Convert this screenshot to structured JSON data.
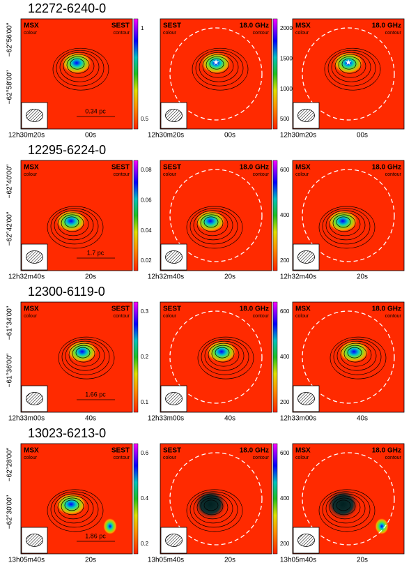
{
  "rows": [
    {
      "title": "12272-6240-0",
      "dec_labels": [
        "−62°56′00″",
        "−62°58′00″"
      ],
      "ra_labels": [
        "12h30m20s",
        "00s"
      ],
      "scale_bar": "0.34 pc",
      "panels": [
        {
          "left": "MSX",
          "left_sub": "colour",
          "right": "SEST",
          "right_sub": "contour",
          "colorbar_ticks": [
            "1",
            "0.5"
          ]
        },
        {
          "left": "SEST",
          "left_sub": "colour",
          "right": "18.0 GHz",
          "right_sub": "contour",
          "colorbar_ticks": [
            "2000",
            "1500",
            "1000",
            "500"
          ]
        },
        {
          "left": "MSX",
          "left_sub": "colour",
          "right": "18.0 GHz",
          "right_sub": "contour"
        }
      ]
    },
    {
      "title": "12295-6224-0",
      "dec_labels": [
        "−62°40′00″",
        "−62°42′00″"
      ],
      "ra_labels": [
        "12h32m40s",
        "20s"
      ],
      "scale_bar": "1.7 pc",
      "panels": [
        {
          "left": "MSX",
          "left_sub": "colour",
          "right": "SEST",
          "right_sub": "contour",
          "colorbar_ticks": [
            "0.08",
            "0.06",
            "0.04",
            "0.02"
          ]
        },
        {
          "left": "SEST",
          "left_sub": "colour",
          "right": "18.0 GHz",
          "right_sub": "contour",
          "colorbar_ticks": [
            "600",
            "400",
            "200"
          ]
        },
        {
          "left": "MSX",
          "left_sub": "colour",
          "right": "18.0 GHz",
          "right_sub": "contour"
        }
      ]
    },
    {
      "title": "12300-6119-0",
      "dec_labels": [
        "−61°34′00″",
        "−61°36′00″"
      ],
      "ra_labels": [
        "12h33m00s",
        "40s"
      ],
      "scale_bar": "1.66 pc",
      "panels": [
        {
          "left": "MSX",
          "left_sub": "colour",
          "right": "SEST",
          "right_sub": "contour",
          "colorbar_ticks": [
            "0.3",
            "0.2",
            "0.1"
          ]
        },
        {
          "left": "SEST",
          "left_sub": "colour",
          "right": "18.0 GHz",
          "right_sub": "contour",
          "colorbar_ticks": [
            "600",
            "400",
            "200"
          ]
        },
        {
          "left": "MSX",
          "left_sub": "colour",
          "right": "18.0 GHz",
          "right_sub": "contour"
        }
      ]
    },
    {
      "title": "13023-6213-0",
      "dec_labels": [
        "−62°28′00″",
        "−62°30′00″"
      ],
      "ra_labels": [
        "13h05m40s",
        "20s"
      ],
      "scale_bar": "1.86 pc",
      "panels": [
        {
          "left": "MSX",
          "left_sub": "colour",
          "right": "SEST",
          "right_sub": "contour",
          "colorbar_ticks": [
            "0.6",
            "0.4",
            "0.2"
          ]
        },
        {
          "left": "SEST",
          "left_sub": "colour",
          "right": "18.0 GHz",
          "right_sub": "contour",
          "colorbar_ticks": [
            "600",
            "400",
            "200"
          ]
        },
        {
          "left": "MSX",
          "left_sub": "colour",
          "right": "18.0 GHz",
          "right_sub": "contour"
        }
      ]
    }
  ]
}
